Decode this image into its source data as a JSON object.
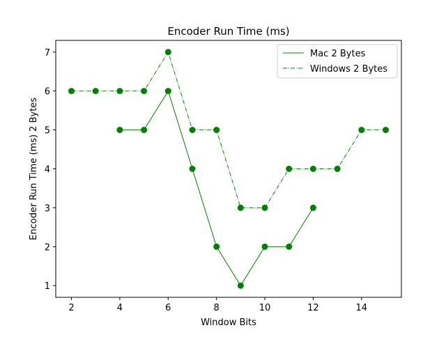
{
  "chart_data": {
    "type": "line",
    "title": "Encoder Run Time (ms)",
    "xlabel": "Window Bits",
    "ylabel": "Encoder Run Time (ms) 2 Bytes",
    "xlim": [
      1.35,
      15.65
    ],
    "ylim": [
      0.7,
      7.3
    ],
    "xticks": [
      2,
      4,
      6,
      8,
      10,
      12,
      14
    ],
    "yticks": [
      1,
      2,
      3,
      4,
      5,
      6,
      7
    ],
    "grid": false,
    "legend_position": "top-right",
    "series": [
      {
        "name": "Mac 2 Bytes",
        "color": "#008000",
        "line_style": "solid",
        "marker": "circle",
        "x": [
          4,
          5,
          6,
          7,
          8,
          9,
          10,
          11,
          12
        ],
        "y": [
          5,
          5,
          6,
          4,
          2,
          1,
          2,
          2,
          3
        ]
      },
      {
        "name": "Windows 2 Bytes",
        "color": "#008000",
        "line_style": "dashdot",
        "marker": "circle",
        "x": [
          2,
          3,
          4,
          5,
          6,
          7,
          8,
          9,
          10,
          11,
          12,
          13,
          14,
          15
        ],
        "y": [
          6,
          6,
          6,
          6,
          7,
          5,
          5,
          3,
          3,
          4,
          4,
          4,
          5,
          5
        ]
      }
    ]
  }
}
